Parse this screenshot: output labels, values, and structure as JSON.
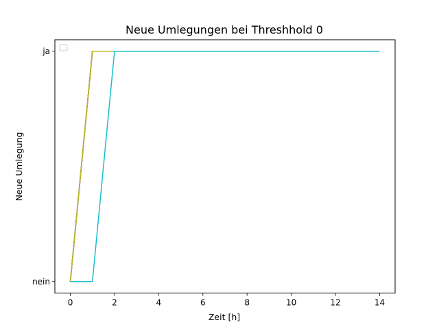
{
  "chart_data": {
    "type": "line",
    "title": "Neue Umlegungen bei Threshhold 0",
    "xlabel": "Zeit [h]",
    "ylabel": "Neue Umlegung",
    "xlim": [
      -0.7,
      14.7
    ],
    "ylim": [
      -0.05,
      1.05
    ],
    "x_ticks": [
      0,
      2,
      4,
      6,
      8,
      10,
      12,
      14
    ],
    "y_ticks": [
      {
        "value": 0,
        "label": "nein"
      },
      {
        "value": 1,
        "label": "ja"
      }
    ],
    "grid": false,
    "legend": {
      "placement": "top-left",
      "entries": []
    },
    "x": [
      0,
      1,
      2,
      3,
      4,
      5,
      6,
      7,
      8,
      9,
      10,
      11,
      12,
      13,
      14
    ],
    "series": [
      {
        "color": "#1f77b4",
        "values": [
          0,
          1,
          1,
          1,
          1,
          1,
          1,
          1,
          1,
          1,
          1,
          1,
          1,
          1,
          1
        ]
      },
      {
        "color": "#ff7f0e",
        "values": [
          0,
          1,
          1,
          1,
          1,
          1,
          1,
          1,
          1,
          1,
          1,
          1,
          1,
          1,
          1
        ]
      },
      {
        "color": "#2ca02c",
        "values": [
          0,
          1,
          1,
          1,
          1,
          1,
          1,
          1,
          1,
          1,
          1,
          1,
          1,
          1,
          1
        ]
      },
      {
        "color": "#d62728",
        "values": [
          0,
          1,
          1,
          1,
          1,
          1,
          1,
          1,
          1,
          1,
          1,
          1,
          1,
          1,
          1
        ]
      },
      {
        "color": "#9467bd",
        "values": [
          0,
          1,
          1,
          1,
          1,
          1,
          1,
          1,
          1,
          1,
          1,
          1,
          1,
          1,
          1
        ]
      },
      {
        "color": "#8c564b",
        "values": [
          0,
          1,
          1,
          1,
          1,
          1,
          1,
          1,
          1,
          1,
          1,
          1,
          1,
          1,
          1
        ]
      },
      {
        "color": "#e377c2",
        "values": [
          0,
          1,
          1,
          1,
          1,
          1,
          1,
          1,
          1,
          1,
          1,
          1,
          1,
          1,
          1
        ]
      },
      {
        "color": "#7f7f7f",
        "values": [
          0,
          1,
          1,
          1,
          1,
          1,
          1,
          1,
          1,
          1,
          1,
          1,
          1,
          1,
          1
        ]
      },
      {
        "color": "#bcbd22",
        "values": [
          0,
          1,
          1,
          1,
          1,
          1,
          1,
          1,
          1,
          1,
          1,
          1,
          1,
          1,
          1
        ]
      },
      {
        "color": "#17becf",
        "values": [
          0,
          0,
          1,
          1,
          1,
          1,
          1,
          1,
          1,
          1,
          1,
          1,
          1,
          1,
          1
        ]
      }
    ]
  }
}
